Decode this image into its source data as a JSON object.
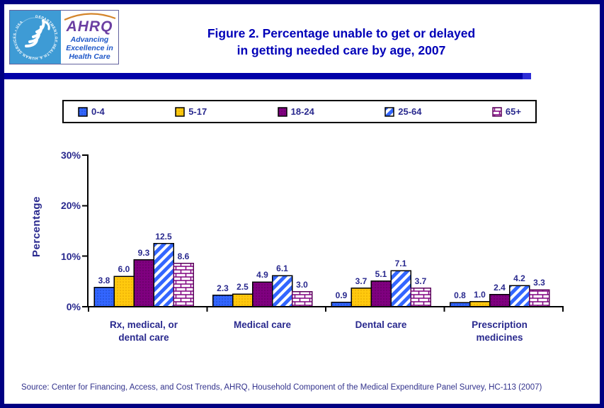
{
  "header": {
    "title_line1": "Figure 2. Percentage unable to get or delayed",
    "title_line2": "in getting needed care by age, 2007",
    "logo": {
      "seal_text": "DEPARTMENT OF HEALTH & HUMAN SERVICES • USA",
      "ahrq_name": "AHRQ",
      "tagline_line1": "Advancing",
      "tagline_line2": "Excellence in",
      "tagline_line3": "Health Care"
    }
  },
  "chart_data": {
    "type": "bar",
    "title": "Figure 2. Percentage unable to get or delayed in getting needed care by age, 2007",
    "ylabel": "Percentage",
    "xlabel": "",
    "ylim": [
      0,
      30
    ],
    "yticks": [
      {
        "value": 0,
        "label": "0%"
      },
      {
        "value": 10,
        "label": "10%"
      },
      {
        "value": 20,
        "label": "20%"
      },
      {
        "value": 30,
        "label": "30%"
      }
    ],
    "grid": false,
    "legend_position": "top",
    "value_labels": true,
    "categories": [
      {
        "label": "Rx, medical, or dental care",
        "lines": [
          "Rx, medical, or",
          "dental care"
        ]
      },
      {
        "label": "Medical care",
        "lines": [
          "Medical care"
        ]
      },
      {
        "label": "Dental care",
        "lines": [
          "Dental care"
        ]
      },
      {
        "label": "Prescription medicines",
        "lines": [
          "Prescription",
          "medicines"
        ]
      }
    ],
    "series": [
      {
        "name": "0-4",
        "values": [
          3.8,
          2.3,
          0.9,
          0.8
        ],
        "fill": "#3366ff",
        "pattern": "dots",
        "pattern_id": "pat-dots-blue",
        "border": "#000000"
      },
      {
        "name": "5-17",
        "values": [
          6.0,
          2.5,
          3.7,
          1.0
        ],
        "fill": "#ffc90e",
        "pattern": "dots",
        "pattern_id": "pat-dots-gold",
        "border": "#000000"
      },
      {
        "name": "18-24",
        "values": [
          9.3,
          4.9,
          5.1,
          2.4
        ],
        "fill": "#800080",
        "pattern": "dots",
        "pattern_id": "pat-dots-purple",
        "border": "#000000"
      },
      {
        "name": "25-64",
        "values": [
          12.5,
          6.1,
          7.1,
          4.2
        ],
        "fill": "#3366ff",
        "pattern": "diagonal-hatch",
        "pattern_id": "pat-hatch-blue",
        "border": "#000000"
      },
      {
        "name": "65+",
        "values": [
          8.6,
          3.0,
          3.7,
          3.3
        ],
        "fill": "#800080",
        "pattern": "brick",
        "pattern_id": "pat-brick-purple",
        "border": "#5a005a"
      }
    ]
  },
  "source_note": "Source: Center for Financing, Access, and Cost Trends, AHRQ, Household Component of the Medical Expenditure Panel Survey, HC-113 (2007)",
  "colors": {
    "page_border": "#000082",
    "divider": "#0000a8",
    "divider_tip": "#2d2dd6",
    "title_text": "#0000b8",
    "label_text": "#29298e",
    "axis_line": "#000000",
    "source_text": "#32328c",
    "hhs_blue": "#3e9bd5",
    "ahrq_purple": "#6b3fa2",
    "ahrq_blue": "#1d56c8",
    "ahrq_arc_orange": "#d4862c"
  }
}
